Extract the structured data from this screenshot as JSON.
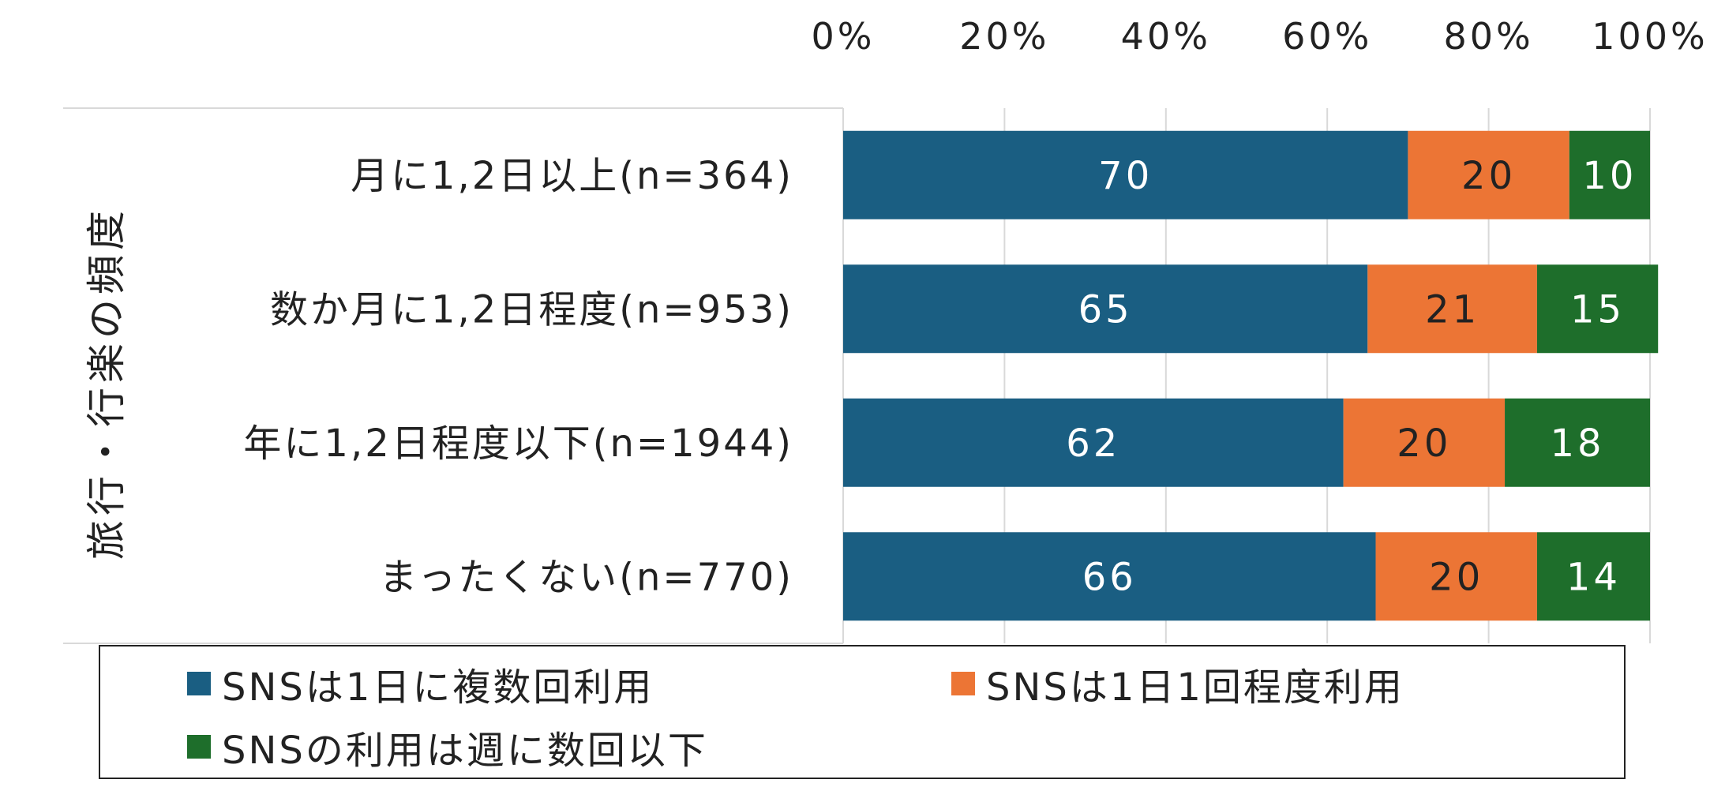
{
  "colors": {
    "series": [
      "#1a5e82",
      "#ec7535",
      "#1e6e2b"
    ],
    "grid": "#d9d9d9",
    "text": "#222222",
    "label_light": "#ffffff"
  },
  "chart_data": {
    "type": "bar",
    "orientation": "horizontal",
    "stacked": true,
    "title": "",
    "ylabel": "旅行・行楽の頻度",
    "xlabel": "",
    "xlim": [
      0,
      100
    ],
    "xticks": [
      "0%",
      "20%",
      "40%",
      "60%",
      "80%",
      "100%"
    ],
    "categories": [
      "月に1,2日以上(n=364)",
      "数か月に1,2日程度(n=953)",
      "年に1,2日程度以下(n=1944)",
      "まったくない(n=770)"
    ],
    "series": [
      {
        "name": "SNSは1日に複数回利用",
        "values": [
          70,
          65,
          62,
          66
        ]
      },
      {
        "name": "SNSは1日1回程度利用",
        "values": [
          20,
          21,
          20,
          20
        ]
      },
      {
        "name": "SNSの利用は週に数回以下",
        "values": [
          10,
          15,
          18,
          14
        ]
      }
    ],
    "grid": true,
    "legend_position": "bottom"
  }
}
